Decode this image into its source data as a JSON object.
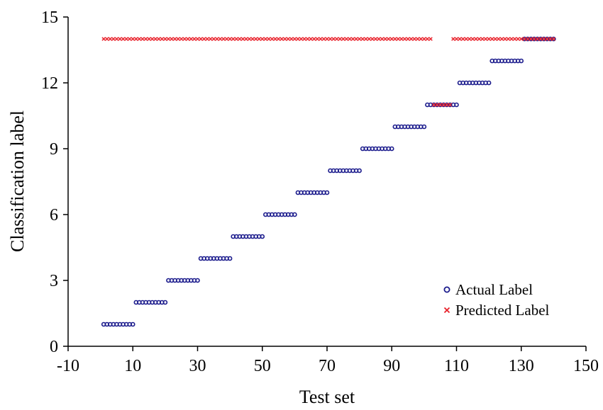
{
  "chart_data": {
    "type": "scatter",
    "xlabel": "Test set",
    "ylabel": "Classification label",
    "xlim": [
      -10,
      150
    ],
    "ylim": [
      0,
      15
    ],
    "xticks": [
      -10,
      10,
      30,
      50,
      70,
      90,
      110,
      130,
      150
    ],
    "yticks": [
      0,
      3,
      6,
      9,
      12,
      15
    ],
    "legend": {
      "position": "bottom-right"
    },
    "grid": false,
    "series": [
      {
        "name": "Actual Label",
        "marker": "circle",
        "color": "#1a1a8c",
        "segments": [
          {
            "x_from": 1,
            "x_to": 10,
            "y": 1
          },
          {
            "x_from": 11,
            "x_to": 20,
            "y": 2
          },
          {
            "x_from": 21,
            "x_to": 30,
            "y": 3
          },
          {
            "x_from": 31,
            "x_to": 40,
            "y": 4
          },
          {
            "x_from": 41,
            "x_to": 50,
            "y": 5
          },
          {
            "x_from": 51,
            "x_to": 60,
            "y": 6
          },
          {
            "x_from": 61,
            "x_to": 70,
            "y": 7
          },
          {
            "x_from": 71,
            "x_to": 80,
            "y": 8
          },
          {
            "x_from": 81,
            "x_to": 90,
            "y": 9
          },
          {
            "x_from": 91,
            "x_to": 100,
            "y": 10
          },
          {
            "x_from": 101,
            "x_to": 110,
            "y": 11
          },
          {
            "x_from": 111,
            "x_to": 120,
            "y": 12
          },
          {
            "x_from": 121,
            "x_to": 130,
            "y": 13
          },
          {
            "x_from": 131,
            "x_to": 140,
            "y": 14
          }
        ]
      },
      {
        "name": "Predicted Label",
        "marker": "x",
        "color": "#e8202a",
        "segments": [
          {
            "x_from": 1,
            "x_to": 102,
            "y": 14
          },
          {
            "x_from": 103,
            "x_to": 108,
            "y": 11
          },
          {
            "x_from": 109,
            "x_to": 140,
            "y": 14
          }
        ]
      }
    ]
  }
}
